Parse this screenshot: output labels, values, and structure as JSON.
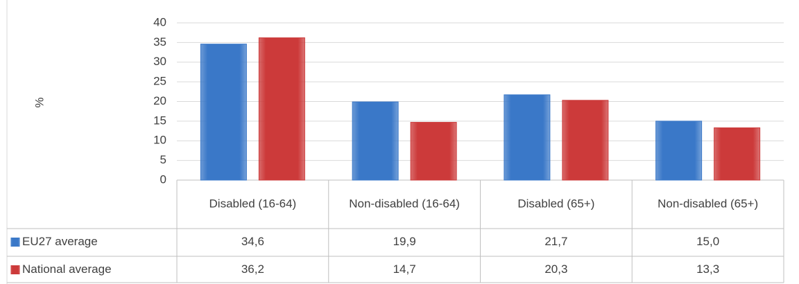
{
  "chart_data": {
    "type": "bar",
    "y_label": "%",
    "categories": [
      "Disabled (16-64)",
      "Non-disabled (16-64)",
      "Disabled (65+)",
      "Non-disabled (65+)"
    ],
    "series": [
      {
        "name": "EU27 average",
        "color": "#3a78c8",
        "values": [
          34.6,
          19.9,
          21.7,
          15.0
        ],
        "value_labels": [
          "34,6",
          "19,9",
          "21,7",
          "15,0"
        ]
      },
      {
        "name": "National average",
        "color": "#cc3a3a",
        "values": [
          36.2,
          14.7,
          20.3,
          13.3
        ],
        "value_labels": [
          "36,2",
          "14,7",
          "20,3",
          "13,3"
        ]
      }
    ],
    "ylim": [
      0,
      40
    ],
    "yticks": [
      0,
      5,
      10,
      15,
      20,
      25,
      30,
      35,
      40
    ],
    "grid": true
  }
}
